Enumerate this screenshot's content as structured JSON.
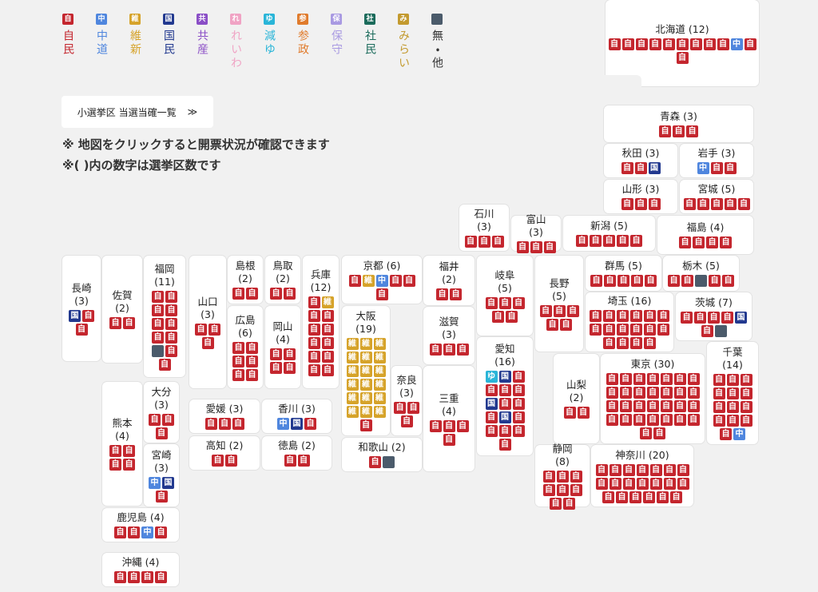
{
  "legend": [
    {
      "mark": "自",
      "name": "自民",
      "color": "#c4262e"
    },
    {
      "mark": "中",
      "name": "中道",
      "color": "#4f86de"
    },
    {
      "mark": "維",
      "name": "維新",
      "color": "#d6a32a"
    },
    {
      "mark": "国",
      "name": "国民",
      "color": "#22398f"
    },
    {
      "mark": "共",
      "name": "共産",
      "color": "#8a4ec6"
    },
    {
      "mark": "れ",
      "name": "れいわ",
      "color": "#f0a3c4"
    },
    {
      "mark": "ゆ",
      "name": "減ゆ",
      "color": "#2ab5d8"
    },
    {
      "mark": "参",
      "name": "参政",
      "color": "#e07b2c"
    },
    {
      "mark": "保",
      "name": "保守",
      "color": "#a99ae2"
    },
    {
      "mark": "社",
      "name": "社民",
      "color": "#1b6b5b"
    },
    {
      "mark": "み",
      "name": "みらい",
      "color": "#c39a2f"
    },
    {
      "mark": null,
      "name": "無・他",
      "color": "#4b5b6b"
    }
  ],
  "button": {
    "label": "小選挙区 当選当確一覧",
    "icon": "≫"
  },
  "notes": [
    "※ 地図をクリックすると開票状況が確認できます",
    "※( )内の数字は選挙区数です"
  ],
  "prefectures": [
    {
      "name": "北海道",
      "count": "(12)",
      "seats": [
        "自",
        "自",
        "自",
        "自",
        "自",
        "自",
        "自",
        "自",
        "自",
        "中",
        "自",
        "自"
      ]
    },
    {
      "name": "青森",
      "count": "(3)",
      "seats": [
        "自",
        "自",
        "自"
      ]
    },
    {
      "name": "秋田",
      "count": "(3)",
      "seats": [
        "自",
        "自",
        "国"
      ]
    },
    {
      "name": "岩手",
      "count": "(3)",
      "seats": [
        "中",
        "自",
        "自"
      ]
    },
    {
      "name": "山形",
      "count": "(3)",
      "seats": [
        "自",
        "自",
        "自"
      ]
    },
    {
      "name": "宮城",
      "count": "(5)",
      "seats": [
        "自",
        "自",
        "自",
        "自",
        "自"
      ]
    },
    {
      "name": "石川",
      "count": "(3)",
      "seats": [
        "自",
        "自",
        "自"
      ]
    },
    {
      "name": "富山",
      "count": "(3)",
      "seats": [
        "自",
        "自",
        "自"
      ]
    },
    {
      "name": "新潟",
      "count": "(5)",
      "seats": [
        "自",
        "自",
        "自",
        "自",
        "自"
      ]
    },
    {
      "name": "福島",
      "count": "(4)",
      "seats": [
        "自",
        "自",
        "自",
        "自"
      ]
    },
    {
      "name": "長崎",
      "count": "(3)",
      "seats": [
        "国",
        "自",
        "自"
      ]
    },
    {
      "name": "佐賀",
      "count": "(2)",
      "seats": [
        "自",
        "自"
      ]
    },
    {
      "name": "福岡",
      "count": "(11)",
      "seats": [
        "自",
        "自",
        "自",
        "自",
        "自",
        "自",
        "自",
        "自",
        null,
        "自",
        "自"
      ]
    },
    {
      "name": "山口",
      "count": "(3)",
      "seats": [
        "自",
        "自",
        "自"
      ]
    },
    {
      "name": "島根",
      "count": "(2)",
      "seats": [
        "自",
        "自"
      ]
    },
    {
      "name": "鳥取",
      "count": "(2)",
      "seats": [
        "自",
        "自"
      ]
    },
    {
      "name": "兵庫",
      "count": "(12)",
      "seats": [
        "自",
        "維",
        "自",
        "自",
        "自",
        "自",
        "自",
        "自",
        "自",
        "自",
        "自",
        "自"
      ]
    },
    {
      "name": "京都",
      "count": "(6)",
      "seats": [
        "自",
        "維",
        "中",
        "自",
        "自",
        "自"
      ]
    },
    {
      "name": "福井",
      "count": "(2)",
      "seats": [
        "自",
        "自"
      ]
    },
    {
      "name": "岐阜",
      "count": "(5)",
      "seats": [
        "自",
        "自",
        "自",
        "自",
        "自"
      ]
    },
    {
      "name": "長野",
      "count": "(5)",
      "seats": [
        "自",
        "自",
        "自",
        "自",
        "自"
      ]
    },
    {
      "name": "群馬",
      "count": "(5)",
      "seats": [
        "自",
        "自",
        "自",
        "自",
        "自"
      ]
    },
    {
      "name": "栃木",
      "count": "(5)",
      "seats": [
        "自",
        "自",
        null,
        "自",
        "自"
      ]
    },
    {
      "name": "広島",
      "count": "(6)",
      "seats": [
        "自",
        "自",
        "自",
        "自",
        "自",
        "自"
      ]
    },
    {
      "name": "岡山",
      "count": "(4)",
      "seats": [
        "自",
        "自",
        "自",
        "自"
      ]
    },
    {
      "name": "大阪",
      "count": "(19)",
      "seats": [
        "維",
        "維",
        "維",
        "維",
        "維",
        "維",
        "維",
        "維",
        "維",
        "維",
        "維",
        "維",
        "維",
        "維",
        "維",
        "維",
        "維",
        "維",
        "自"
      ]
    },
    {
      "name": "滋賀",
      "count": "(3)",
      "seats": [
        "自",
        "自",
        "自"
      ]
    },
    {
      "name": "埼玉",
      "count": "(16)",
      "seats": [
        "自",
        "自",
        "自",
        "自",
        "自",
        "自",
        "自",
        "自",
        "自",
        "自",
        "自",
        "自",
        "自",
        "自",
        "自",
        "自"
      ]
    },
    {
      "name": "茨城",
      "count": "(7)",
      "seats": [
        "自",
        "自",
        "自",
        "自",
        "国",
        "自",
        null
      ]
    },
    {
      "name": "愛知",
      "count": "(16)",
      "seats": [
        "ゆ",
        "国",
        "自",
        "自",
        "自",
        "自",
        "国",
        "自",
        "自",
        "自",
        "国",
        "自",
        "自",
        "自",
        "自",
        "自"
      ]
    },
    {
      "name": "千葉",
      "count": "(14)",
      "seats": [
        "自",
        "自",
        "自",
        "自",
        "自",
        "自",
        "自",
        "自",
        "自",
        "自",
        "自",
        "自",
        "自",
        "中"
      ]
    },
    {
      "name": "熊本",
      "count": "(4)",
      "seats": [
        "自",
        "自",
        "自",
        "自"
      ]
    },
    {
      "name": "大分",
      "count": "(3)",
      "seats": [
        "自",
        "自",
        "自"
      ]
    },
    {
      "name": "奈良",
      "count": "(3)",
      "seats": [
        "自",
        "自",
        "自"
      ]
    },
    {
      "name": "三重",
      "count": "(4)",
      "seats": [
        "自",
        "自",
        "自",
        "自"
      ]
    },
    {
      "name": "山梨",
      "count": "(2)",
      "seats": [
        "自",
        "自"
      ]
    },
    {
      "name": "東京",
      "count": "(30)",
      "seats": [
        "自",
        "自",
        "自",
        "自",
        "自",
        "自",
        "自",
        "自",
        "自",
        "自",
        "自",
        "自",
        "自",
        "自",
        "自",
        "自",
        "自",
        "自",
        "自",
        "自",
        "自",
        "自",
        "自",
        "自",
        "自",
        "自",
        "自",
        "自",
        "自",
        "自"
      ]
    },
    {
      "name": "愛媛",
      "count": "(3)",
      "seats": [
        "自",
        "自",
        "自"
      ]
    },
    {
      "name": "香川",
      "count": "(3)",
      "seats": [
        "中",
        "国",
        "自"
      ]
    },
    {
      "name": "宮崎",
      "count": "(3)",
      "seats": [
        "中",
        "国",
        "自"
      ]
    },
    {
      "name": "高知",
      "count": "(2)",
      "seats": [
        "自",
        "自"
      ]
    },
    {
      "name": "徳島",
      "count": "(2)",
      "seats": [
        "自",
        "自"
      ]
    },
    {
      "name": "和歌山",
      "count": "(2)",
      "seats": [
        "自",
        null
      ]
    },
    {
      "name": "静岡",
      "count": "(8)",
      "seats": [
        "自",
        "自",
        "自",
        "自",
        "自",
        "自",
        "自",
        "自"
      ]
    },
    {
      "name": "神奈川",
      "count": "(20)",
      "seats": [
        "自",
        "自",
        "自",
        "自",
        "自",
        "自",
        "自",
        "自",
        "自",
        "自",
        "自",
        "自",
        "自",
        "自",
        "自",
        "自",
        "自",
        "自",
        "自",
        "自"
      ]
    },
    {
      "name": "鹿児島",
      "count": "(4)",
      "seats": [
        "自",
        "自",
        "中",
        "自"
      ]
    },
    {
      "name": "沖縄",
      "count": "(4)",
      "seats": [
        "自",
        "自",
        "自",
        "自"
      ]
    }
  ]
}
